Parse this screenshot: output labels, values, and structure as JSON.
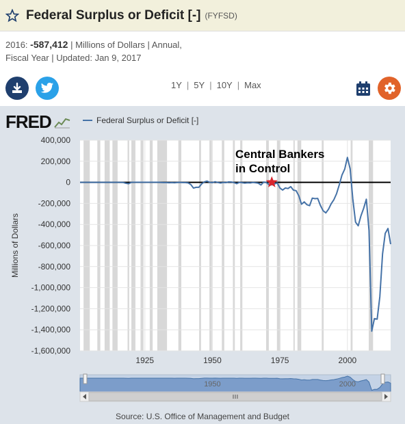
{
  "header": {
    "title": "Federal Surplus or Deficit [-]",
    "series_id": "(FYFSD)"
  },
  "meta": {
    "year": "2016:",
    "value": "-587,412",
    "info": "| Millions of Dollars | Annual,",
    "info2": "Fiscal Year | Updated: Jan 9, 2017"
  },
  "toolbar": {
    "ranges": [
      "1Y",
      "5Y",
      "10Y",
      "Max"
    ],
    "download_icon": "download-icon",
    "twitter_icon": "twitter-icon",
    "calendar_icon": "calendar-icon",
    "settings_icon": "gear-icon",
    "colors": {
      "download": "#1f3f6e",
      "twitter": "#2aa1e8",
      "settings": "#e1632a"
    }
  },
  "logo": {
    "text": "FRED"
  },
  "source": "Source: U.S. Office of Management and Budget",
  "chart_data": {
    "type": "line",
    "title": "",
    "xlabel": "",
    "ylabel": "Millions of Dollars",
    "xlim": [
      1901,
      2016
    ],
    "ylim": [
      -1600000,
      400000
    ],
    "x_ticks": [
      "1925",
      "1950",
      "1975",
      "2000"
    ],
    "y_ticks": [
      "400,000",
      "200,000",
      "0",
      "-200,000",
      "-400,000",
      "-600,000",
      "-800,000",
      "-1,000,000",
      "-1,200,000",
      "-1,400,000",
      "-1,600,000"
    ],
    "grid": true,
    "legend": "top-left",
    "series": [
      {
        "name": "Federal Surplus or Deficit [-]",
        "color": "#4572a7",
        "x": [
          1901,
          1905,
          1910,
          1915,
          1917,
          1918,
          1919,
          1920,
          1921,
          1925,
          1930,
          1931,
          1932,
          1933,
          1934,
          1935,
          1936,
          1937,
          1938,
          1939,
          1940,
          1941,
          1942,
          1943,
          1944,
          1945,
          1946,
          1947,
          1948,
          1949,
          1950,
          1951,
          1952,
          1953,
          1954,
          1955,
          1956,
          1957,
          1958,
          1959,
          1960,
          1961,
          1962,
          1963,
          1964,
          1965,
          1966,
          1967,
          1968,
          1969,
          1970,
          1971,
          1972,
          1973,
          1974,
          1975,
          1976,
          1977,
          1978,
          1979,
          1980,
          1981,
          1982,
          1983,
          1984,
          1985,
          1986,
          1987,
          1988,
          1989,
          1990,
          1991,
          1992,
          1993,
          1994,
          1995,
          1996,
          1997,
          1998,
          1999,
          2000,
          2001,
          2002,
          2003,
          2004,
          2005,
          2006,
          2007,
          2008,
          2009,
          2010,
          2011,
          2012,
          2013,
          2014,
          2015,
          2016
        ],
        "y": [
          0,
          0,
          0,
          0,
          -1000,
          -9000,
          -13000,
          300,
          500,
          700,
          700,
          -500,
          -2700,
          -2600,
          -3600,
          -2800,
          -4300,
          -2200,
          -100,
          -2800,
          -2900,
          -4900,
          -20500,
          -54600,
          -47600,
          -47600,
          -15900,
          4000,
          11800,
          600,
          -3100,
          6100,
          -1500,
          -6500,
          -1200,
          -3000,
          3900,
          3400,
          -2800,
          -12800,
          300,
          -3300,
          -7100,
          -4800,
          -5900,
          -1400,
          -3700,
          -8600,
          -25200,
          3200,
          -2800,
          -23000,
          -23400,
          -14900,
          -6100,
          -53200,
          -73700,
          -53700,
          -59200,
          -40700,
          -73800,
          -79000,
          -128000,
          -207800,
          -185400,
          -212300,
          -221200,
          -149700,
          -155200,
          -152600,
          -221000,
          -269200,
          -290300,
          -255100,
          -203200,
          -164000,
          -107400,
          -21900,
          69300,
          125600,
          236200,
          128200,
          -157800,
          -377600,
          -412700,
          -318300,
          -248200,
          -160700,
          -458600,
          -1412700,
          -1294400,
          -1299600,
          -1087000,
          -679500,
          -484600,
          -438400,
          -587412
        ]
      }
    ],
    "recessions": [
      [
        1902.3,
        1904.6
      ],
      [
        1907.4,
        1908.5
      ],
      [
        1910.1,
        1912.0
      ],
      [
        1913.0,
        1914.9
      ],
      [
        1918.6,
        1919.2
      ],
      [
        1920.0,
        1921.5
      ],
      [
        1923.4,
        1924.5
      ],
      [
        1926.8,
        1927.9
      ],
      [
        1929.6,
        1933.2
      ],
      [
        1937.4,
        1938.5
      ],
      [
        1945.1,
        1945.8
      ],
      [
        1948.9,
        1949.8
      ],
      [
        1953.5,
        1954.4
      ],
      [
        1957.6,
        1958.3
      ],
      [
        1960.3,
        1961.1
      ],
      [
        1969.9,
        1970.9
      ],
      [
        1973.9,
        1975.2
      ],
      [
        1980.0,
        1980.5
      ],
      [
        1981.5,
        1982.9
      ],
      [
        1990.5,
        1991.2
      ],
      [
        2001.2,
        2001.9
      ],
      [
        2007.9,
        2009.5
      ]
    ],
    "annotations": [
      {
        "text": "Central Bankers",
        "text2": "in Control",
        "marker": "star",
        "x": 1972,
        "y": 0,
        "color": "#d8262e"
      }
    ],
    "navigator": {
      "labels": [
        "1950",
        "2000"
      ]
    }
  }
}
